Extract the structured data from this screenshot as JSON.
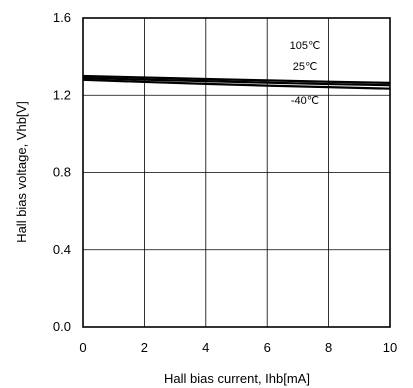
{
  "chart_data": {
    "type": "line",
    "title": "",
    "xlabel": "Hall bias current, Ihb[mA]",
    "ylabel": "Hall bias voltage, Vhb[V]",
    "xlim": [
      0,
      10
    ],
    "ylim": [
      0,
      1.6
    ],
    "x_ticks": [
      "0",
      "2",
      "4",
      "6",
      "8",
      "10"
    ],
    "y_ticks": [
      "0.0",
      "0.4",
      "0.8",
      "1.2",
      "1.6"
    ],
    "grid": true,
    "legend": "none",
    "line_color": "#000000",
    "series": [
      {
        "name": "105℃",
        "x": [
          0,
          2,
          4,
          6,
          8,
          10
        ],
        "y": [
          1.3,
          1.292,
          1.284,
          1.277,
          1.27,
          1.264
        ]
      },
      {
        "name": "25℃",
        "x": [
          0,
          2,
          4,
          6,
          8,
          10
        ],
        "y": [
          1.29,
          1.281,
          1.273,
          1.265,
          1.258,
          1.252
        ]
      },
      {
        "name": "-40℃",
        "x": [
          0,
          2,
          4,
          6,
          8,
          10
        ],
        "y": [
          1.28,
          1.269,
          1.259,
          1.25,
          1.242,
          1.234
        ]
      }
    ]
  }
}
